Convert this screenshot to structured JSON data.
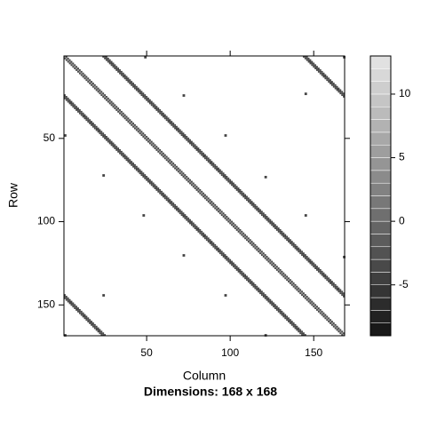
{
  "chart_data": {
    "type": "sparse-matrix",
    "xlabel": "Column",
    "ylabel": "Row",
    "subtitle": "Dimensions: 168 x 168",
    "xlim": [
      0.5,
      168.5
    ],
    "ylim": [
      0.5,
      168.5
    ],
    "xticks": [
      50,
      100,
      150
    ],
    "yticks": [
      50,
      100,
      150
    ],
    "zlim": [
      -9,
      13
    ],
    "zticks": [
      -5,
      0,
      5,
      10
    ],
    "bands": [
      {
        "offset": 0,
        "value": 4
      },
      {
        "offset": 1,
        "value": -4
      },
      {
        "offset": -1,
        "value": -4
      },
      {
        "offset": 23,
        "value": -4
      },
      {
        "offset": 24,
        "value": -4
      },
      {
        "offset": 25,
        "value": -4
      },
      {
        "offset": -23,
        "value": -4
      },
      {
        "offset": -24,
        "value": -4
      },
      {
        "offset": -25,
        "value": -4
      },
      {
        "offset": 143,
        "value": -4
      },
      {
        "offset": 144,
        "value": -4
      },
      {
        "offset": 145,
        "value": -4
      },
      {
        "offset": -143,
        "value": -4
      },
      {
        "offset": -144,
        "value": -4
      },
      {
        "offset": -145,
        "value": -4
      }
    ],
    "points": [
      {
        "row": 1,
        "col": 49,
        "value": -4
      },
      {
        "row": 24,
        "col": 72,
        "value": -4
      },
      {
        "row": 23,
        "col": 145,
        "value": -4
      },
      {
        "row": 48,
        "col": 1,
        "value": -4
      },
      {
        "row": 48,
        "col": 97,
        "value": -4
      },
      {
        "row": 72,
        "col": 24,
        "value": -4
      },
      {
        "row": 73,
        "col": 121,
        "value": -4
      },
      {
        "row": 96,
        "col": 48,
        "value": -4
      },
      {
        "row": 96,
        "col": 145,
        "value": -4
      },
      {
        "row": 120,
        "col": 72,
        "value": -4
      },
      {
        "row": 121,
        "col": 168,
        "value": -4
      },
      {
        "row": 144,
        "col": 24,
        "value": -4
      },
      {
        "row": 144,
        "col": 97,
        "value": -4
      },
      {
        "row": 168,
        "col": 1,
        "value": -4
      },
      {
        "row": 168,
        "col": 121,
        "value": -4
      },
      {
        "row": 1,
        "col": 168,
        "value": -4
      }
    ]
  }
}
